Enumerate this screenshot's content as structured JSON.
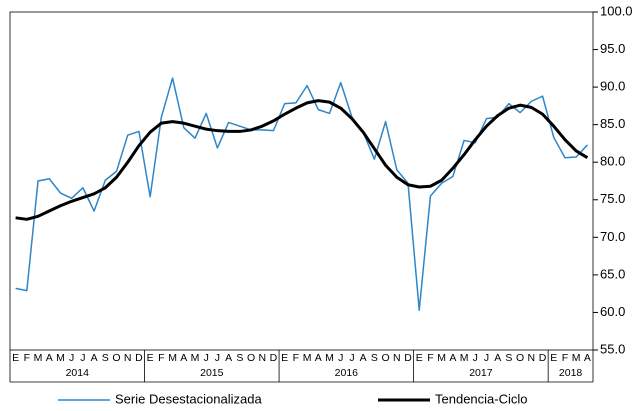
{
  "chart_data": {
    "type": "line",
    "categories": [
      "E",
      "F",
      "M",
      "A",
      "M",
      "J",
      "J",
      "A",
      "S",
      "O",
      "N",
      "D",
      "E",
      "F",
      "M",
      "A",
      "M",
      "J",
      "J",
      "A",
      "S",
      "O",
      "N",
      "D",
      "E",
      "F",
      "M",
      "A",
      "M",
      "J",
      "J",
      "A",
      "S",
      "O",
      "N",
      "D",
      "E",
      "F",
      "M",
      "A",
      "M",
      "J",
      "J",
      "A",
      "S",
      "O",
      "N",
      "D",
      "E",
      "F",
      "M",
      "A"
    ],
    "year_groups": [
      "2014",
      "2015",
      "2016",
      "2017",
      "2018"
    ],
    "series": [
      {
        "name": "Serie Desestacionalizada",
        "color": "#2e86c9",
        "values": [
          63.2,
          62.9,
          77.5,
          77.8,
          75.9,
          75.2,
          76.6,
          73.5,
          77.6,
          78.8,
          83.6,
          84.1,
          75.4,
          86.0,
          91.2,
          84.6,
          83.2,
          86.5,
          81.9,
          85.3,
          84.8,
          84.3,
          84.3,
          84.2,
          87.8,
          87.9,
          90.2,
          87.0,
          86.5,
          90.6,
          86.0,
          84.0,
          80.4,
          85.4,
          79.0,
          77.2,
          60.3,
          75.5,
          77.2,
          78.1,
          82.9,
          82.6,
          85.8,
          86.0,
          87.8,
          86.6,
          88.1,
          88.8,
          83.3,
          80.6,
          80.7,
          82.3
        ]
      },
      {
        "name": "Tendencia-Ciclo",
        "color": "#000000",
        "values": [
          72.6,
          72.4,
          72.8,
          73.5,
          74.2,
          74.8,
          75.3,
          75.8,
          76.6,
          78.0,
          80.0,
          82.2,
          84.0,
          85.2,
          85.4,
          85.2,
          84.8,
          84.4,
          84.2,
          84.1,
          84.1,
          84.3,
          84.8,
          85.5,
          86.4,
          87.2,
          87.9,
          88.2,
          88.0,
          87.2,
          85.8,
          84.0,
          81.8,
          79.6,
          78.0,
          77.0,
          76.7,
          76.8,
          77.6,
          79.2,
          81.0,
          83.0,
          84.8,
          86.2,
          87.2,
          87.6,
          87.3,
          86.4,
          84.8,
          83.0,
          81.5,
          80.6
        ]
      }
    ],
    "ylim": [
      55,
      100
    ],
    "yticks": [
      {
        "value": 55,
        "label": "55.0"
      },
      {
        "value": 60,
        "label": "60.0"
      },
      {
        "value": 65,
        "label": "65.0"
      },
      {
        "value": 70,
        "label": "70.0"
      },
      {
        "value": 75,
        "label": "75.0"
      },
      {
        "value": 80,
        "label": "80.0"
      },
      {
        "value": 85,
        "label": "85.0"
      },
      {
        "value": 90,
        "label": "90.0"
      },
      {
        "value": 95,
        "label": "95.0"
      },
      {
        "value": 100,
        "label": "100.0"
      }
    ],
    "y_axis_side": "right"
  }
}
